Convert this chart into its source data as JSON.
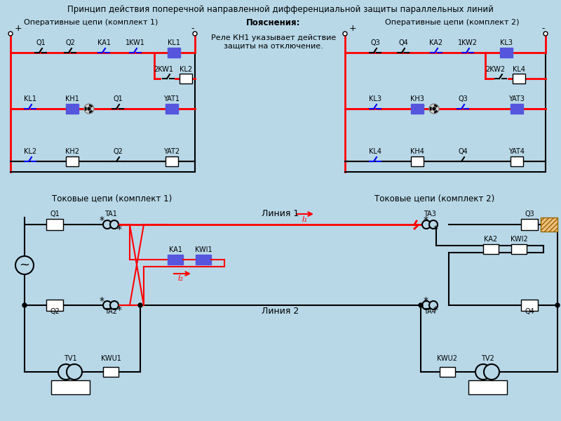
{
  "title": "Принцип действия поперечной направленной дифференциальной защиты параллельных линий",
  "bg_color": "#b8d8e8",
  "label_kit1_op": "Оперативные цепи (комплект 1)",
  "label_poyasn": "Пояснения:",
  "label_kit2_op": "Оперативные цепи (комплект 2)",
  "label_kit1_tok": "Токовые цепи (комплект 1)",
  "label_kit2_tok": "Токовые цепи (комплект 2)",
  "poyasn_text": "Реле КН1 указывает действие\nзащиты на отключение.",
  "line1_label": "Линия 1",
  "line2_label": "Линия 2",
  "I1_label": "I₁",
  "I2_label": "I₂"
}
